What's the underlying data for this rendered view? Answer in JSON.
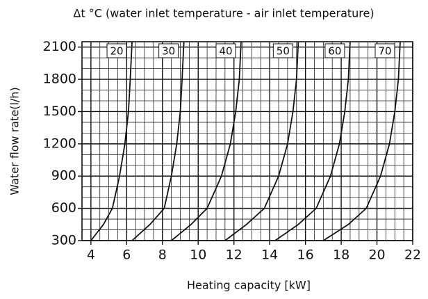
{
  "chart_data": {
    "type": "line",
    "title": "Δt °C (water inlet temperature - air inlet temperature)",
    "x_label": "Heating capacity [kW]",
    "y_label": "Water flow rate(l/h)",
    "xlim": [
      3.5,
      22
    ],
    "xticks": [
      4,
      6,
      8,
      10,
      12,
      14,
      16,
      18,
      20,
      22
    ],
    "ylim": [
      300,
      2150
    ],
    "yticks": [
      300,
      600,
      900,
      1200,
      1500,
      1800,
      2100
    ],
    "grid": true,
    "series": [
      {
        "name": "20",
        "color": "#111111",
        "x": [
          4,
          4.7,
          5.2,
          5.6,
          5.9,
          6.1,
          6.2,
          6.3
        ],
        "values": [
          300,
          450,
          600,
          900,
          1200,
          1500,
          1800,
          2150
        ]
      },
      {
        "name": "30",
        "color": "#111111",
        "x": [
          6.3,
          7.3,
          8.1,
          8.5,
          8.8,
          9.0,
          9.1,
          9.2
        ],
        "values": [
          300,
          450,
          600,
          900,
          1200,
          1500,
          1800,
          2150
        ]
      },
      {
        "name": "40",
        "color": "#111111",
        "x": [
          8.5,
          9.6,
          10.5,
          11.3,
          11.8,
          12.1,
          12.3,
          12.4
        ],
        "values": [
          300,
          450,
          600,
          900,
          1200,
          1500,
          1800,
          2150
        ]
      },
      {
        "name": "50",
        "color": "#111111",
        "x": [
          11.5,
          12.7,
          13.7,
          14.5,
          15.0,
          15.3,
          15.5,
          15.6
        ],
        "values": [
          300,
          450,
          600,
          900,
          1200,
          1500,
          1800,
          2150
        ]
      },
      {
        "name": "60",
        "color": "#111111",
        "x": [
          14.3,
          15.6,
          16.6,
          17.4,
          17.9,
          18.2,
          18.4,
          18.5
        ],
        "values": [
          300,
          450,
          600,
          900,
          1200,
          1500,
          1800,
          2150
        ]
      },
      {
        "name": "70",
        "color": "#111111",
        "x": [
          17,
          18.4,
          19.4,
          20.2,
          20.7,
          21.0,
          21.2,
          21.3
        ],
        "values": [
          300,
          450,
          600,
          900,
          1200,
          1500,
          1800,
          2150
        ]
      }
    ]
  }
}
